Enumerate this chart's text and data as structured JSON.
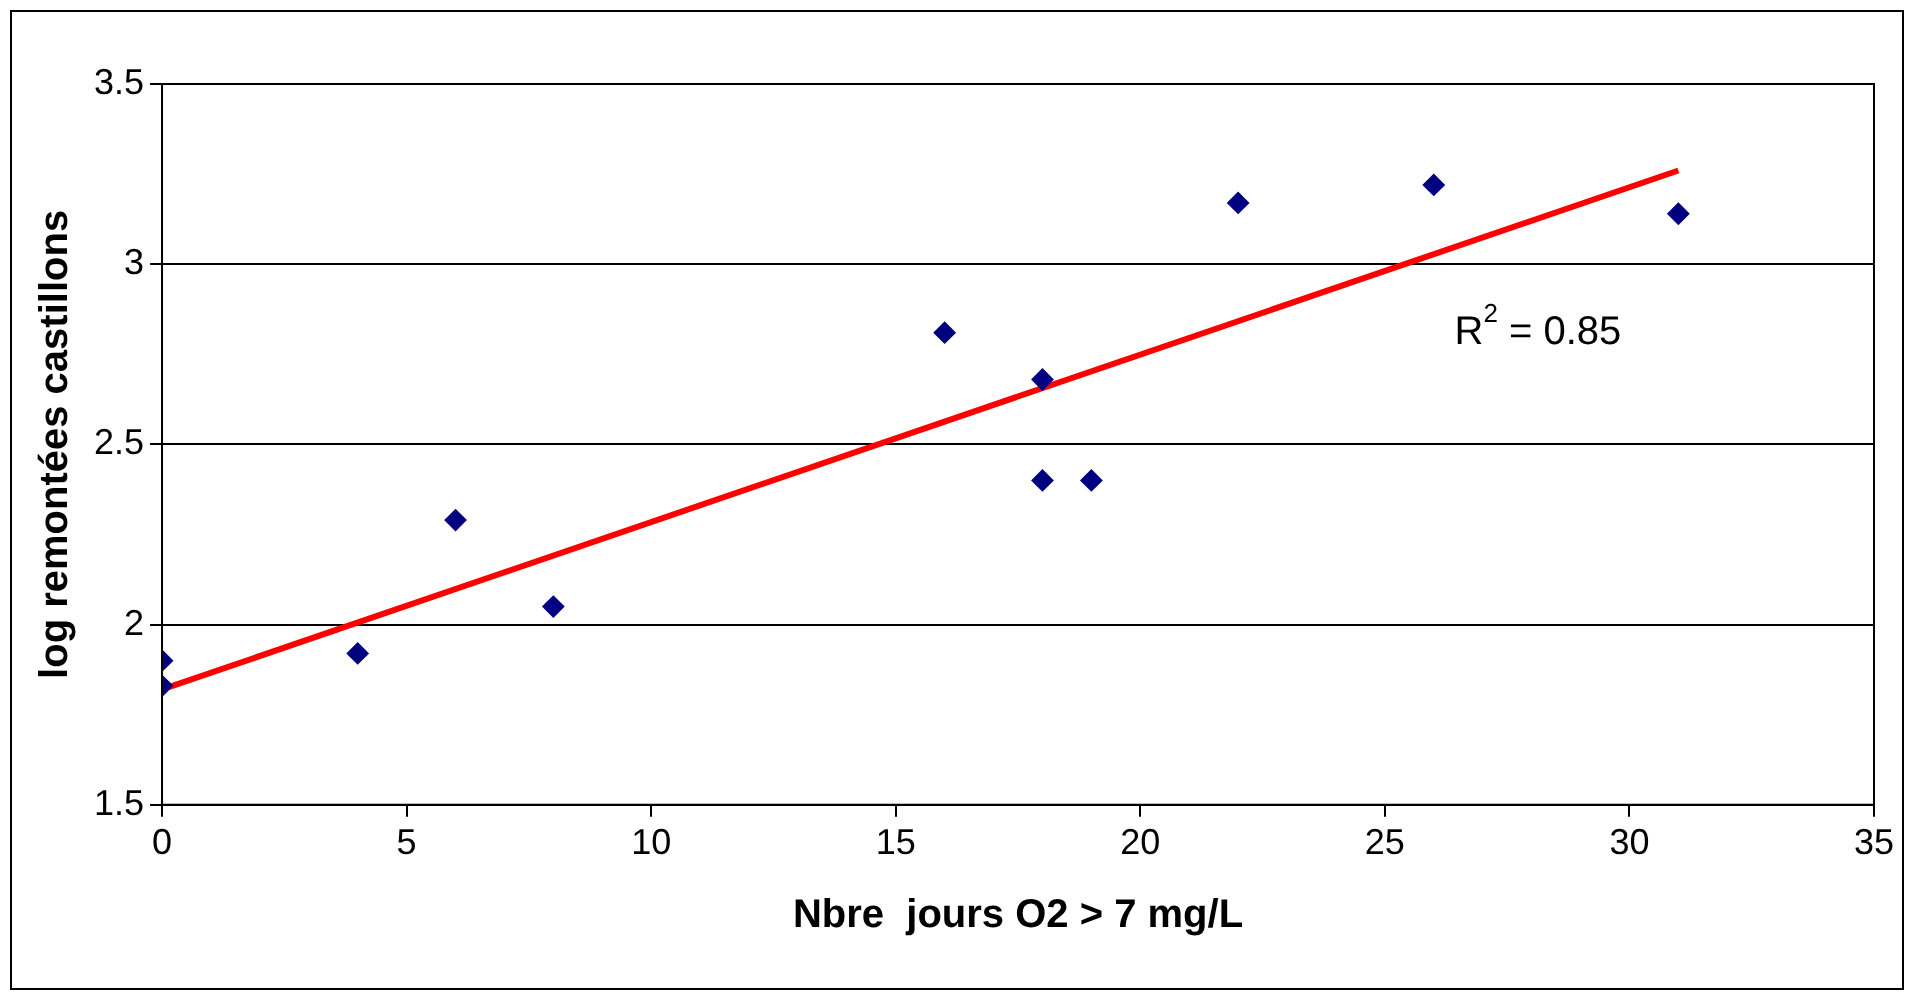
{
  "chart_data": {
    "type": "scatter",
    "xlabel": "Nbre  jours O2 > 7 mg/L",
    "ylabel": "log remontées castillons",
    "xlim": [
      0,
      35
    ],
    "xticks": [
      0,
      5,
      10,
      15,
      20,
      25,
      30,
      35
    ],
    "ylim": [
      1.5,
      3.5
    ],
    "yticks": [
      1.5,
      2,
      2.5,
      3,
      3.5
    ],
    "grid": "y",
    "legend": false,
    "series": [
      {
        "marker": "diamond",
        "color": "#000080",
        "x": [
          0,
          0,
          4,
          6,
          8,
          16,
          18,
          18,
          19,
          22,
          26,
          31
        ],
        "values": [
          1.9,
          1.83,
          1.92,
          2.29,
          2.05,
          2.81,
          2.68,
          2.4,
          2.4,
          3.17,
          3.22,
          3.14
        ]
      },
      {
        "type": "line",
        "marker": "none",
        "color": "#ff0000",
        "x": [
          0,
          31
        ],
        "values": [
          1.82,
          3.26
        ]
      }
    ],
    "annotations": [
      "R$^{2}$ = 0.85"
    ]
  }
}
